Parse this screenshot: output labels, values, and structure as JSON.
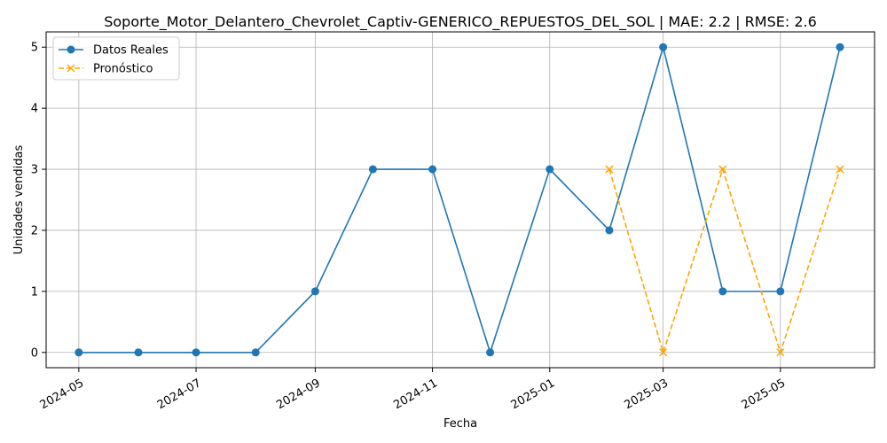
{
  "chart_data": {
    "type": "line",
    "title": "Soporte_Motor_Delantero_Chevrolet_Captiv-GENERICO_REPUESTOS_DEL_SOL | MAE: 2.2 | RMSE: 2.6",
    "xlabel": "Fecha",
    "ylabel": "Unidades vendidas",
    "x_ticks": [
      "2024-05",
      "2024-07",
      "2024-09",
      "2024-11",
      "2025-01",
      "2025-03",
      "2025-05"
    ],
    "y_ticks": [
      0,
      1,
      2,
      3,
      4,
      5
    ],
    "ylim": [
      -0.25,
      5.25
    ],
    "xlim": [
      "2024-04-14",
      "2025-06-19"
    ],
    "grid": true,
    "legend_position": "top-left",
    "series": [
      {
        "name": "Datos Reales",
        "color": "#1f77b4",
        "style": "solid",
        "marker": "circle",
        "x": [
          "2024-05-01",
          "2024-06-01",
          "2024-07-01",
          "2024-08-01",
          "2024-09-01",
          "2024-10-01",
          "2024-11-01",
          "2024-12-01",
          "2025-01-01",
          "2025-02-01",
          "2025-03-01",
          "2025-04-01",
          "2025-05-01",
          "2025-06-01"
        ],
        "y": [
          0,
          0,
          0,
          0,
          1,
          3,
          3,
          0,
          3,
          2,
          5,
          1,
          1,
          5
        ]
      },
      {
        "name": "Pronóstico",
        "color": "#ffa500",
        "style": "dashed",
        "marker": "x",
        "x": [
          "2025-02-01",
          "2025-03-01",
          "2025-04-01",
          "2025-05-01",
          "2025-06-01"
        ],
        "y": [
          3,
          0,
          3,
          0,
          3
        ]
      }
    ]
  }
}
